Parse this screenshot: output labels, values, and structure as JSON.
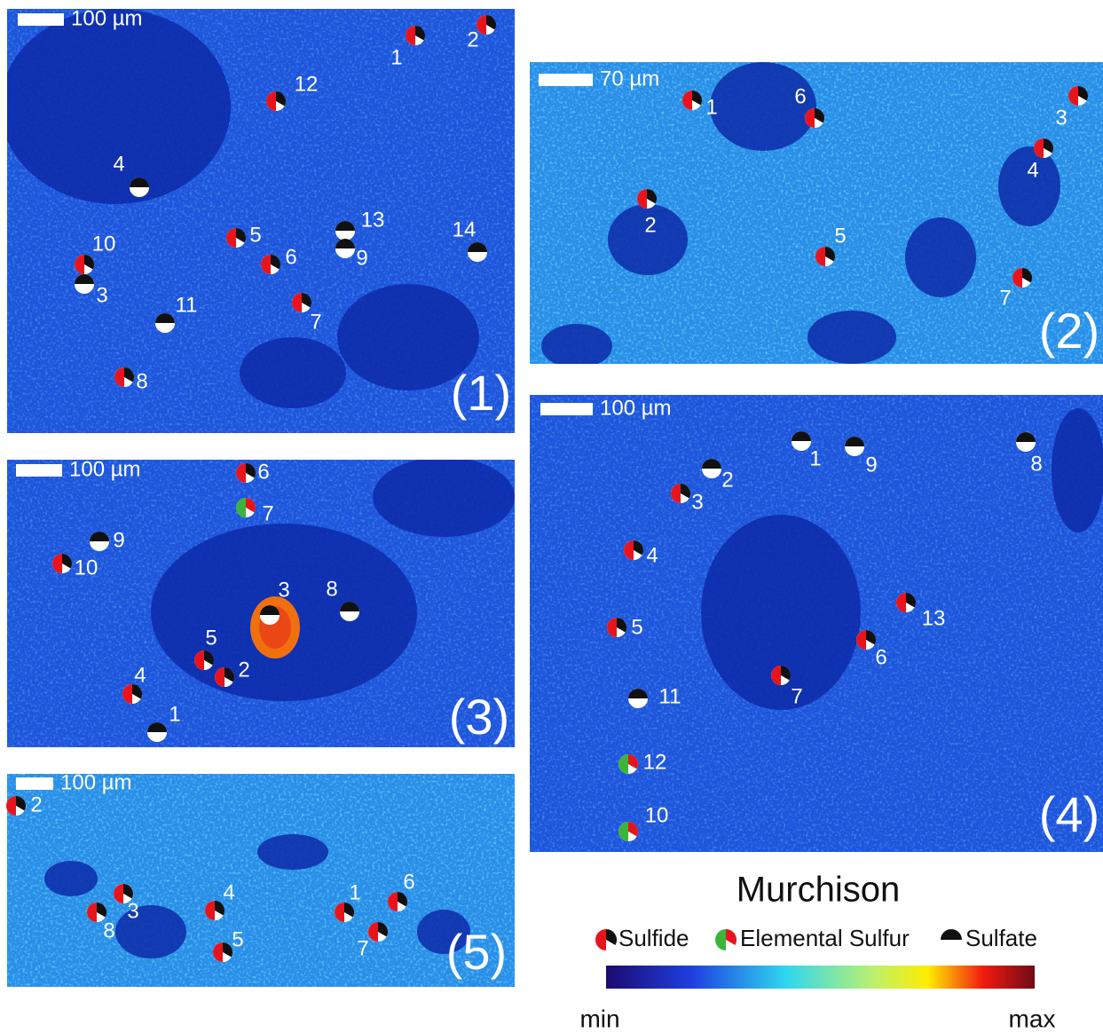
{
  "panels": [
    {
      "scale_bar": "100 µm",
      "label": "(1)",
      "markers": [
        {
          "label": "1",
          "kind": "sulfide"
        },
        {
          "label": "2",
          "kind": "sulfide"
        },
        {
          "label": "12",
          "kind": "sulfide"
        },
        {
          "label": "4",
          "kind": "sulfate"
        },
        {
          "label": "5",
          "kind": "sulfide"
        },
        {
          "label": "13",
          "kind": "sulfate"
        },
        {
          "label": "9",
          "kind": "sulfate"
        },
        {
          "label": "14",
          "kind": "sulfate"
        },
        {
          "label": "10",
          "kind": "sulfide"
        },
        {
          "label": "3",
          "kind": "sulfate"
        },
        {
          "label": "6",
          "kind": "sulfide"
        },
        {
          "label": "11",
          "kind": "sulfate"
        },
        {
          "label": "7",
          "kind": "sulfide"
        },
        {
          "label": "8",
          "kind": "sulfide"
        }
      ]
    },
    {
      "scale_bar": "70 µm",
      "label": "(2)",
      "markers": [
        {
          "label": "1",
          "kind": "sulfide"
        },
        {
          "label": "6",
          "kind": "sulfide"
        },
        {
          "label": "3",
          "kind": "sulfide"
        },
        {
          "label": "4",
          "kind": "sulfide"
        },
        {
          "label": "2",
          "kind": "sulfide"
        },
        {
          "label": "5",
          "kind": "sulfide"
        },
        {
          "label": "7",
          "kind": "sulfide"
        }
      ]
    },
    {
      "scale_bar": "100 µm",
      "label": "(3)",
      "markers": [
        {
          "label": "6",
          "kind": "sulfide"
        },
        {
          "label": "7",
          "kind": "elemental"
        },
        {
          "label": "9",
          "kind": "sulfate"
        },
        {
          "label": "10",
          "kind": "sulfide"
        },
        {
          "label": "3",
          "kind": "sulfate"
        },
        {
          "label": "8",
          "kind": "sulfate"
        },
        {
          "label": "5",
          "kind": "sulfide"
        },
        {
          "label": "2",
          "kind": "sulfide"
        },
        {
          "label": "4",
          "kind": "sulfide"
        },
        {
          "label": "1",
          "kind": "sulfate"
        }
      ]
    },
    {
      "scale_bar": "100 µm",
      "label": "(4)",
      "markers": [
        {
          "label": "1",
          "kind": "sulfate"
        },
        {
          "label": "9",
          "kind": "sulfate"
        },
        {
          "label": "8",
          "kind": "sulfate"
        },
        {
          "label": "2",
          "kind": "sulfate"
        },
        {
          "label": "3",
          "kind": "sulfide"
        },
        {
          "label": "4",
          "kind": "sulfide"
        },
        {
          "label": "13",
          "kind": "sulfide"
        },
        {
          "label": "5",
          "kind": "sulfide"
        },
        {
          "label": "6",
          "kind": "sulfide"
        },
        {
          "label": "7",
          "kind": "sulfide"
        },
        {
          "label": "11",
          "kind": "sulfate"
        },
        {
          "label": "12",
          "kind": "elemental"
        },
        {
          "label": "10",
          "kind": "elemental"
        }
      ]
    },
    {
      "scale_bar": "100 µm",
      "label": "(5)",
      "markers": [
        {
          "label": "2",
          "kind": "sulfide"
        },
        {
          "label": "3",
          "kind": "sulfide"
        },
        {
          "label": "8",
          "kind": "sulfide"
        },
        {
          "label": "4",
          "kind": "sulfide"
        },
        {
          "label": "5",
          "kind": "sulfide"
        },
        {
          "label": "1",
          "kind": "sulfide"
        },
        {
          "label": "6",
          "kind": "sulfide"
        },
        {
          "label": "7",
          "kind": "sulfide"
        }
      ]
    }
  ],
  "legend": {
    "title": "Murchison",
    "items": [
      {
        "label": "Sulfide",
        "kind": "sulfide"
      },
      {
        "label": "Elemental Sulfur",
        "kind": "elemental"
      },
      {
        "label": "Sulfate",
        "kind": "sulfate"
      }
    ]
  },
  "colorbar": {
    "min": "min",
    "max": "max"
  }
}
